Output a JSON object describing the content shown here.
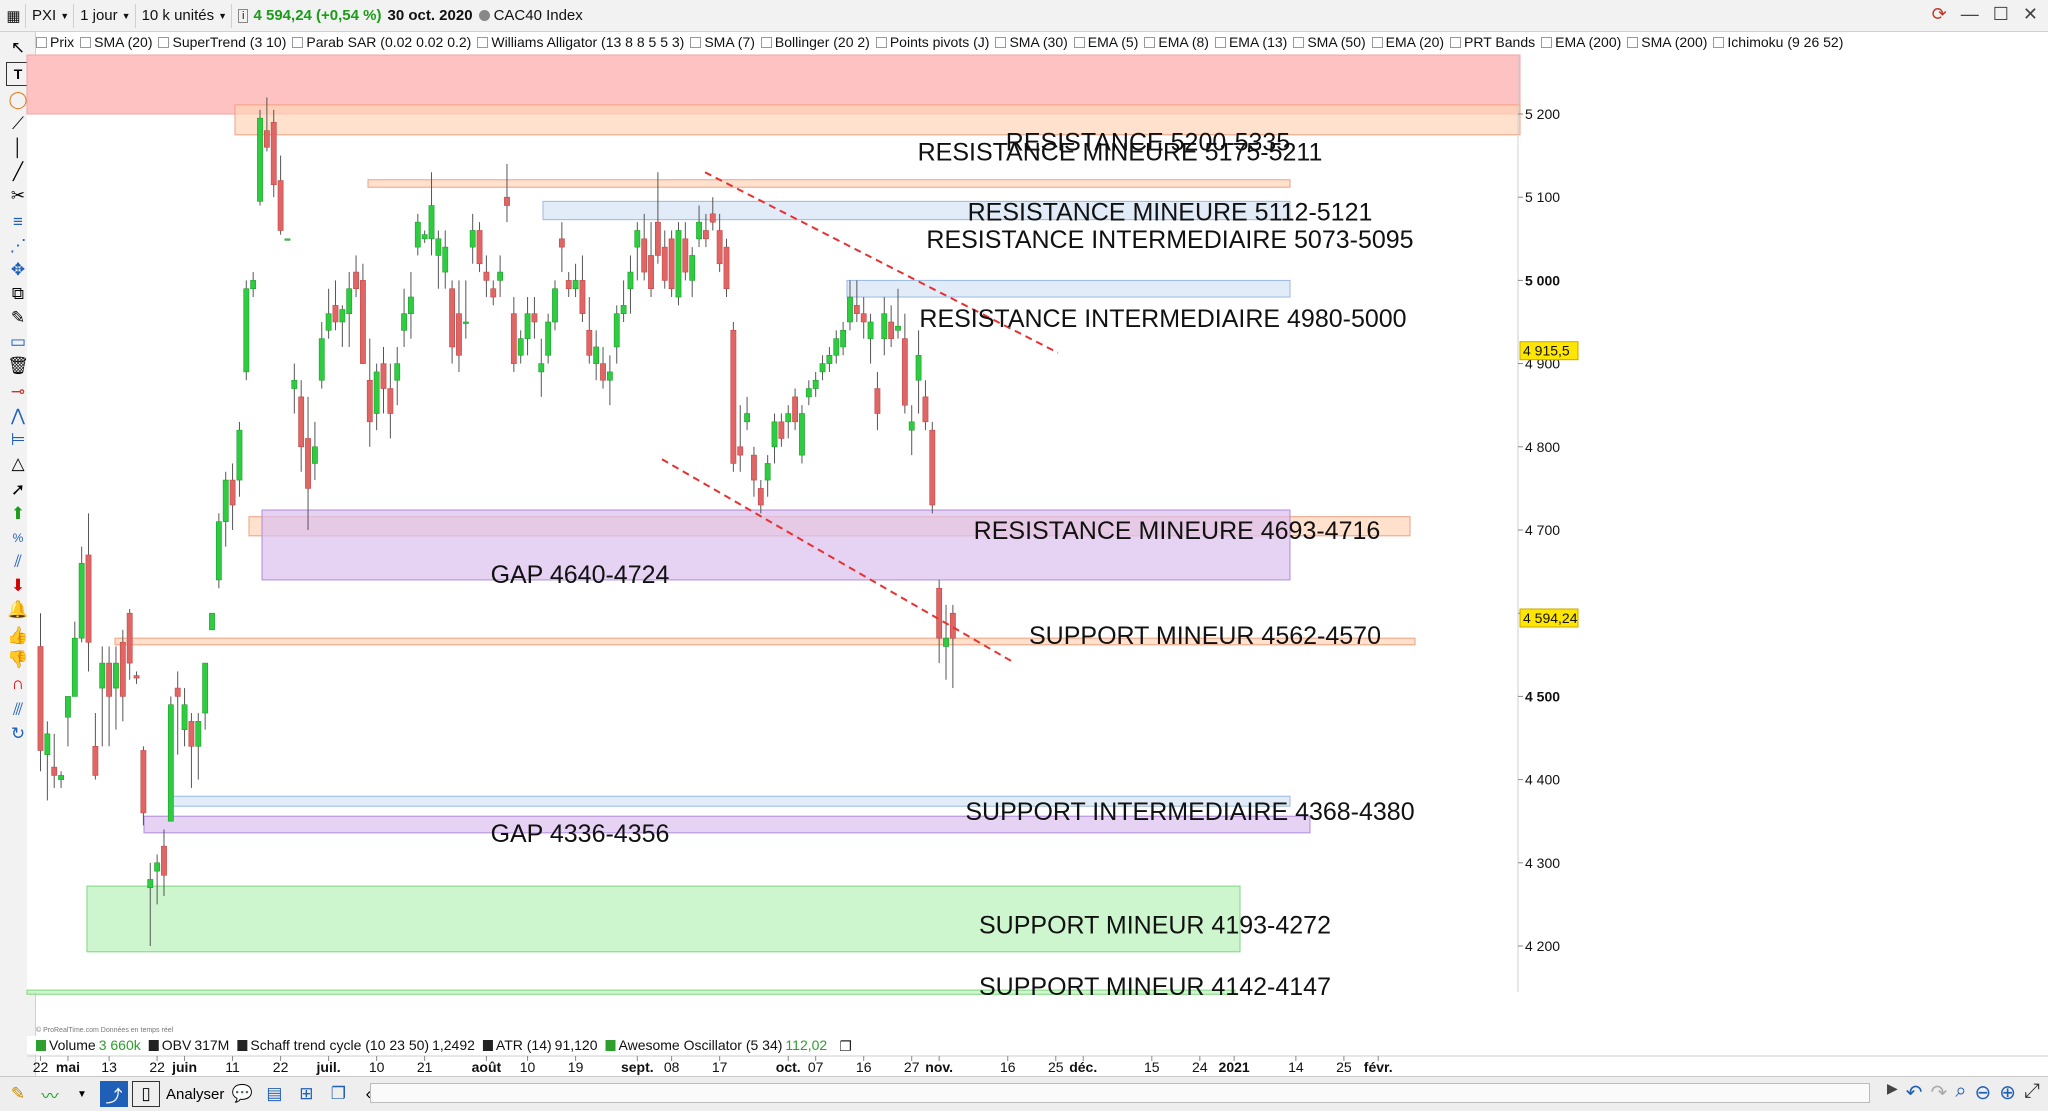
{
  "header": {
    "symbol": "PXI",
    "period": "1 jour",
    "units": "10 k unités",
    "price": "4 594,24 (+0,54 %)",
    "date": "30 oct. 2020",
    "index_name": "CAC40 Index"
  },
  "indicators": [
    "Prix",
    "SMA (20)",
    "SuperTrend (3 10)",
    "Parab SAR (0.02 0.02 0.2)",
    "Williams Alligator (13 8 8 5 5 3)",
    "SMA (7)",
    "Bollinger (20 2)",
    "Points pivots (J)",
    "SMA (30)",
    "EMA (5)",
    "EMA (8)",
    "EMA (13)",
    "SMA (50)",
    "EMA (20)",
    "PRT Bands",
    "EMA (200)",
    "SMA (200)",
    "Ichimoku (9 26 52)"
  ],
  "lower_indicators": [
    {
      "name": "Volume",
      "value": "3 660k",
      "color": "#2e9e2e"
    },
    {
      "name": "OBV",
      "value": "317M",
      "color": "#111111"
    },
    {
      "name": "Schaff trend cycle (10 23 50)",
      "value": "1,2492",
      "color": "#111111"
    },
    {
      "name": "ATR (14)",
      "value": "91,120",
      "color": "#111111"
    },
    {
      "name": "Awesome Oscillator (5 34)",
      "value": "112,02",
      "color": "#2e9e2e"
    }
  ],
  "copyright": "© ProRealTime.com  Données en temps réel",
  "bottombar": {
    "analyser": "Analyser"
  },
  "colors": {
    "up": "#2ecc40",
    "down": "#e06666",
    "resistance": "#ff9999",
    "minor": "#ffd4b8",
    "intermediate": "#d6e4f7",
    "gap": "#dcc1f0",
    "support": "#b9f2b9",
    "trendline": "#e83030"
  },
  "chart_data": {
    "type": "candlestick",
    "y_range": [
      4140,
      5240
    ],
    "y_ticks": [
      {
        "v": 5200,
        "label": "5 200"
      },
      {
        "v": 5100,
        "label": "5 100"
      },
      {
        "v": 5000,
        "label": "5 000",
        "bold": true
      },
      {
        "v": 4900,
        "label": "4 900"
      },
      {
        "v": 4800,
        "label": "4 800"
      },
      {
        "v": 4700,
        "label": "4 700"
      },
      {
        "v": 4600,
        "label": "4 600"
      },
      {
        "v": 4500,
        "label": "4 500",
        "bold": true
      },
      {
        "v": 4400,
        "label": "4 400"
      },
      {
        "v": 4300,
        "label": "4 300"
      },
      {
        "v": 4200,
        "label": "4 200"
      }
    ],
    "price_tags": [
      {
        "v": 4915.5,
        "label": "4 915,5"
      },
      {
        "v": 4594.24,
        "label": "4 594,24"
      }
    ],
    "x_labels": [
      {
        "i": 0,
        "label": "22"
      },
      {
        "i": 4,
        "label": "mai",
        "bold": true
      },
      {
        "i": 10,
        "label": "13"
      },
      {
        "i": 17,
        "label": "22"
      },
      {
        "i": 21,
        "label": "juin",
        "bold": true
      },
      {
        "i": 28,
        "label": "11"
      },
      {
        "i": 35,
        "label": "22"
      },
      {
        "i": 42,
        "label": "juil.",
        "bold": true
      },
      {
        "i": 49,
        "label": "10"
      },
      {
        "i": 56,
        "label": "21"
      },
      {
        "i": 65,
        "label": "août",
        "bold": true
      },
      {
        "i": 71,
        "label": "10"
      },
      {
        "i": 78,
        "label": "19"
      },
      {
        "i": 87,
        "label": "sept.",
        "bold": true
      },
      {
        "i": 92,
        "label": "08"
      },
      {
        "i": 99,
        "label": "17"
      },
      {
        "i": 109,
        "label": "oct.",
        "bold": true
      },
      {
        "i": 113,
        "label": "07"
      },
      {
        "i": 120,
        "label": "16"
      },
      {
        "i": 127,
        "label": "27"
      },
      {
        "i": 131,
        "label": "nov.",
        "bold": true
      },
      {
        "i": 141,
        "label": "16"
      },
      {
        "i": 148,
        "label": "25"
      },
      {
        "i": 152,
        "label": "déc.",
        "bold": true
      },
      {
        "i": 162,
        "label": "15"
      },
      {
        "i": 169,
        "label": "24"
      },
      {
        "i": 174,
        "label": "2021",
        "bold": true
      },
      {
        "i": 183,
        "label": "14"
      },
      {
        "i": 190,
        "label": "25"
      },
      {
        "i": 195,
        "label": "févr.",
        "bold": true
      }
    ],
    "candles": [
      {
        "o": 4560,
        "h": 4600,
        "l": 4410,
        "c": 4435
      },
      {
        "o": 4430,
        "h": 4470,
        "l": 4375,
        "c": 4455
      },
      {
        "o": 4415,
        "h": 4455,
        "l": 4390,
        "c": 4405
      },
      {
        "o": 4400,
        "h": 4410,
        "l": 4390,
        "c": 4405
      },
      {
        "o": 4475,
        "h": 4500,
        "l": 4440,
        "c": 4500
      },
      {
        "o": 4500,
        "h": 4590,
        "l": 4500,
        "c": 4570
      },
      {
        "o": 4570,
        "h": 4680,
        "l": 4565,
        "c": 4660
      },
      {
        "o": 4670,
        "h": 4720,
        "l": 4530,
        "c": 4565
      },
      {
        "o": 4440,
        "h": 4480,
        "l": 4400,
        "c": 4405
      },
      {
        "o": 4510,
        "h": 4560,
        "l": 4440,
        "c": 4540
      },
      {
        "o": 4540,
        "h": 4560,
        "l": 4440,
        "c": 4500
      },
      {
        "o": 4510,
        "h": 4560,
        "l": 4460,
        "c": 4540
      },
      {
        "o": 4565,
        "h": 4580,
        "l": 4470,
        "c": 4500
      },
      {
        "o": 4600,
        "h": 4605,
        "l": 4520,
        "c": 4540
      },
      {
        "o": 4525,
        "h": 4530,
        "l": 4515,
        "c": 4522
      },
      {
        "o": 4435,
        "h": 4440,
        "l": 4345,
        "c": 4360
      },
      {
        "o": 4270,
        "h": 4300,
        "l": 4200,
        "c": 4280
      },
      {
        "o": 4290,
        "h": 4310,
        "l": 4250,
        "c": 4300
      },
      {
        "o": 4320,
        "h": 4340,
        "l": 4260,
        "c": 4285
      },
      {
        "o": 4350,
        "h": 4500,
        "l": 4350,
        "c": 4490
      },
      {
        "o": 4510,
        "h": 4530,
        "l": 4430,
        "c": 4500
      },
      {
        "o": 4460,
        "h": 4510,
        "l": 4440,
        "c": 4490
      },
      {
        "o": 4470,
        "h": 4480,
        "l": 4390,
        "c": 4440
      },
      {
        "o": 4440,
        "h": 4480,
        "l": 4400,
        "c": 4470
      },
      {
        "o": 4480,
        "h": 4540,
        "l": 4460,
        "c": 4540
      },
      {
        "o": 4580,
        "h": 4600,
        "l": 4580,
        "c": 4600
      },
      {
        "o": 4640,
        "h": 4720,
        "l": 4630,
        "c": 4710
      },
      {
        "o": 4710,
        "h": 4770,
        "l": 4680,
        "c": 4760
      },
      {
        "o": 4760,
        "h": 4780,
        "l": 4700,
        "c": 4730
      },
      {
        "o": 4760,
        "h": 4830,
        "l": 4740,
        "c": 4820
      },
      {
        "o": 4890,
        "h": 5000,
        "l": 4880,
        "c": 4990
      },
      {
        "o": 4990,
        "h": 5010,
        "l": 4980,
        "c": 5000
      },
      {
        "o": 5095,
        "h": 5205,
        "l": 5090,
        "c": 5195
      },
      {
        "o": 5180,
        "h": 5220,
        "l": 5155,
        "c": 5160
      },
      {
        "o": 5190,
        "h": 5205,
        "l": 5100,
        "c": 5115
      },
      {
        "o": 5120,
        "h": 5150,
        "l": 5055,
        "c": 5060
      },
      {
        "o": 5050,
        "h": 5050,
        "l": 5050,
        "c": 5050
      },
      {
        "o": 4870,
        "h": 4900,
        "l": 4840,
        "c": 4880
      },
      {
        "o": 4860,
        "h": 4880,
        "l": 4770,
        "c": 4800
      },
      {
        "o": 4810,
        "h": 4860,
        "l": 4700,
        "c": 4750
      },
      {
        "o": 4780,
        "h": 4830,
        "l": 4760,
        "c": 4800
      },
      {
        "o": 4880,
        "h": 4950,
        "l": 4870,
        "c": 4930
      },
      {
        "o": 4940,
        "h": 4990,
        "l": 4930,
        "c": 4960
      },
      {
        "o": 4970,
        "h": 5000,
        "l": 4940,
        "c": 4950
      },
      {
        "o": 4950,
        "h": 4970,
        "l": 4920,
        "c": 4965
      },
      {
        "o": 4960,
        "h": 5010,
        "l": 4920,
        "c": 4990
      },
      {
        "o": 5010,
        "h": 5030,
        "l": 4980,
        "c": 4990
      },
      {
        "o": 5000,
        "h": 5020,
        "l": 4900,
        "c": 4900
      },
      {
        "o": 4880,
        "h": 4930,
        "l": 4800,
        "c": 4830
      },
      {
        "o": 4840,
        "h": 4900,
        "l": 4820,
        "c": 4890
      },
      {
        "o": 4900,
        "h": 4920,
        "l": 4840,
        "c": 4870
      },
      {
        "o": 4870,
        "h": 4900,
        "l": 4810,
        "c": 4840
      },
      {
        "o": 4880,
        "h": 4920,
        "l": 4850,
        "c": 4900
      },
      {
        "o": 4940,
        "h": 4990,
        "l": 4920,
        "c": 4960
      },
      {
        "o": 4960,
        "h": 5010,
        "l": 4930,
        "c": 4980
      },
      {
        "o": 5040,
        "h": 5080,
        "l": 5030,
        "c": 5070
      },
      {
        "o": 5050,
        "h": 5060,
        "l": 5045,
        "c": 5055
      },
      {
        "o": 5050,
        "h": 5130,
        "l": 5030,
        "c": 5090
      },
      {
        "o": 5030,
        "h": 5060,
        "l": 4990,
        "c": 5050
      },
      {
        "o": 5010,
        "h": 5060,
        "l": 4990,
        "c": 5040
      },
      {
        "o": 4990,
        "h": 5000,
        "l": 4900,
        "c": 4920
      },
      {
        "o": 4960,
        "h": 5000,
        "l": 4890,
        "c": 4910
      },
      {
        "o": 4950,
        "h": 5000,
        "l": 4930,
        "c": 4950
      },
      {
        "o": 5040,
        "h": 5080,
        "l": 5020,
        "c": 5060
      },
      {
        "o": 5060,
        "h": 5070,
        "l": 5010,
        "c": 5020
      },
      {
        "o": 5010,
        "h": 5030,
        "l": 4980,
        "c": 5000
      },
      {
        "o": 4990,
        "h": 5000,
        "l": 4970,
        "c": 4980
      },
      {
        "o": 5000,
        "h": 5030,
        "l": 4980,
        "c": 5010
      },
      {
        "o": 5100,
        "h": 5140,
        "l": 5070,
        "c": 5090
      },
      {
        "o": 4960,
        "h": 4980,
        "l": 4890,
        "c": 4900
      },
      {
        "o": 4910,
        "h": 4940,
        "l": 4900,
        "c": 4930
      },
      {
        "o": 4930,
        "h": 4980,
        "l": 4910,
        "c": 4960
      },
      {
        "o": 4960,
        "h": 4980,
        "l": 4930,
        "c": 4950
      },
      {
        "o": 4890,
        "h": 4930,
        "l": 4860,
        "c": 4900
      },
      {
        "o": 4910,
        "h": 4960,
        "l": 4900,
        "c": 4950
      },
      {
        "o": 4950,
        "h": 5000,
        "l": 4940,
        "c": 4990
      },
      {
        "o": 5050,
        "h": 5070,
        "l": 5010,
        "c": 5040
      },
      {
        "o": 5000,
        "h": 5010,
        "l": 4980,
        "c": 4990
      },
      {
        "o": 4990,
        "h": 5020,
        "l": 4980,
        "c": 5000
      },
      {
        "o": 5000,
        "h": 5030,
        "l": 4950,
        "c": 4960
      },
      {
        "o": 4940,
        "h": 4980,
        "l": 4900,
        "c": 4910
      },
      {
        "o": 4900,
        "h": 4940,
        "l": 4880,
        "c": 4920
      },
      {
        "o": 4900,
        "h": 4920,
        "l": 4870,
        "c": 4880
      },
      {
        "o": 4880,
        "h": 4910,
        "l": 4850,
        "c": 4890
      },
      {
        "o": 4920,
        "h": 4970,
        "l": 4900,
        "c": 4960
      },
      {
        "o": 4960,
        "h": 5000,
        "l": 4950,
        "c": 4970
      },
      {
        "o": 4990,
        "h": 5030,
        "l": 4960,
        "c": 5010
      },
      {
        "o": 5040,
        "h": 5070,
        "l": 5000,
        "c": 5060
      },
      {
        "o": 5050,
        "h": 5080,
        "l": 5000,
        "c": 5010
      },
      {
        "o": 5030,
        "h": 5070,
        "l": 4980,
        "c": 4990
      },
      {
        "o": 5070,
        "h": 5130,
        "l": 5020,
        "c": 5030
      },
      {
        "o": 5040,
        "h": 5060,
        "l": 4990,
        "c": 5000
      },
      {
        "o": 5050,
        "h": 5060,
        "l": 4980,
        "c": 4990
      },
      {
        "o": 4980,
        "h": 5070,
        "l": 4970,
        "c": 5060
      },
      {
        "o": 5050,
        "h": 5070,
        "l": 5000,
        "c": 5010
      },
      {
        "o": 5000,
        "h": 5040,
        "l": 4980,
        "c": 5030
      },
      {
        "o": 5050,
        "h": 5090,
        "l": 5040,
        "c": 5070
      },
      {
        "o": 5060,
        "h": 5080,
        "l": 5040,
        "c": 5050
      },
      {
        "o": 5080,
        "h": 5100,
        "l": 5060,
        "c": 5070
      },
      {
        "o": 5060,
        "h": 5080,
        "l": 5010,
        "c": 5020
      },
      {
        "o": 5040,
        "h": 5050,
        "l": 4980,
        "c": 4990
      },
      {
        "o": 4940,
        "h": 4950,
        "l": 4770,
        "c": 4780
      },
      {
        "o": 4800,
        "h": 4850,
        "l": 4770,
        "c": 4790
      },
      {
        "o": 4830,
        "h": 4860,
        "l": 4820,
        "c": 4840
      },
      {
        "o": 4790,
        "h": 4800,
        "l": 4740,
        "c": 4760
      },
      {
        "o": 4750,
        "h": 4760,
        "l": 4720,
        "c": 4730
      },
      {
        "o": 4760,
        "h": 4790,
        "l": 4740,
        "c": 4780
      },
      {
        "o": 4800,
        "h": 4840,
        "l": 4780,
        "c": 4830
      },
      {
        "o": 4830,
        "h": 4840,
        "l": 4800,
        "c": 4810
      },
      {
        "o": 4830,
        "h": 4850,
        "l": 4810,
        "c": 4840
      },
      {
        "o": 4860,
        "h": 4870,
        "l": 4820,
        "c": 4830
      },
      {
        "o": 4790,
        "h": 4850,
        "l": 4780,
        "c": 4840
      },
      {
        "o": 4860,
        "h": 4880,
        "l": 4850,
        "c": 4870
      },
      {
        "o": 4870,
        "h": 4890,
        "l": 4860,
        "c": 4880
      },
      {
        "o": 4890,
        "h": 4910,
        "l": 4880,
        "c": 4900
      },
      {
        "o": 4900,
        "h": 4920,
        "l": 4890,
        "c": 4910
      },
      {
        "o": 4910,
        "h": 4940,
        "l": 4900,
        "c": 4930
      },
      {
        "o": 4920,
        "h": 4950,
        "l": 4910,
        "c": 4940
      },
      {
        "o": 4950,
        "h": 5000,
        "l": 4940,
        "c": 4980
      },
      {
        "o": 4970,
        "h": 5000,
        "l": 4950,
        "c": 4960
      },
      {
        "o": 4960,
        "h": 4980,
        "l": 4930,
        "c": 4950
      },
      {
        "o": 4930,
        "h": 4960,
        "l": 4900,
        "c": 4950
      },
      {
        "o": 4870,
        "h": 4890,
        "l": 4820,
        "c": 4840
      },
      {
        "o": 4930,
        "h": 4980,
        "l": 4910,
        "c": 4960
      },
      {
        "o": 4950,
        "h": 4970,
        "l": 4920,
        "c": 4930
      },
      {
        "o": 4940,
        "h": 4990,
        "l": 4930,
        "c": 4945
      },
      {
        "o": 4930,
        "h": 4960,
        "l": 4840,
        "c": 4850
      },
      {
        "o": 4820,
        "h": 4850,
        "l": 4790,
        "c": 4830
      },
      {
        "o": 4880,
        "h": 4940,
        "l": 4840,
        "c": 4910
      },
      {
        "o": 4860,
        "h": 4880,
        "l": 4820,
        "c": 4830
      },
      {
        "o": 4820,
        "h": 4830,
        "l": 4720,
        "c": 4730
      },
      {
        "o": 4630,
        "h": 4640,
        "l": 4540,
        "c": 4570
      },
      {
        "o": 4560,
        "h": 4610,
        "l": 4520,
        "c": 4570
      },
      {
        "o": 4600,
        "h": 4610,
        "l": 4510,
        "c": 4570
      }
    ],
    "zones": [
      {
        "kind": "resistance",
        "lo": 5200,
        "hi": 5335,
        "x0": 0,
        "x1": 1520,
        "label": "RESISTANCE 5200-5335",
        "lx": 1148,
        "ly": 5167
      },
      {
        "kind": "minor",
        "lo": 5175,
        "hi": 5211,
        "x0": 235,
        "x1": 1520,
        "label": "RESISTANCE MINEURE 5175-5211",
        "lx": 1120,
        "ly": 5155
      },
      {
        "kind": "minor",
        "lo": 5112,
        "hi": 5121,
        "x0": 368,
        "x1": 1290,
        "label": "RESISTANCE MINEURE 5112-5121",
        "lx": 1170,
        "ly": 5083
      },
      {
        "kind": "intermediate",
        "lo": 5073,
        "hi": 5095,
        "x0": 543,
        "x1": 1290,
        "label": "RESISTANCE INTERMEDIAIRE 5073-5095",
        "lx": 1170,
        "ly": 5050
      },
      {
        "kind": "intermediate",
        "lo": 4980,
        "hi": 5000,
        "x0": 847,
        "x1": 1290,
        "label": "RESISTANCE INTERMEDIAIRE 4980-5000",
        "lx": 1163,
        "ly": 4955
      },
      {
        "kind": "minor",
        "lo": 4693,
        "hi": 4716,
        "x0": 249,
        "x1": 1410,
        "label": "RESISTANCE MINEURE 4693-4716",
        "lx": 1177,
        "ly": 4700
      },
      {
        "kind": "gap",
        "lo": 4640,
        "hi": 4724,
        "x0": 262,
        "x1": 1290,
        "label": "GAP 4640-4724",
        "lx": 580,
        "ly": 4647
      },
      {
        "kind": "minor",
        "lo": 4562,
        "hi": 4570,
        "x0": 115,
        "x1": 1415,
        "label": "SUPPORT MINEUR 4562-4570",
        "lx": 1205,
        "ly": 4574
      },
      {
        "kind": "intermediate",
        "lo": 4368,
        "hi": 4380,
        "x0": 172,
        "x1": 1290,
        "label": "SUPPORT INTERMEDIAIRE 4368-4380",
        "lx": 1190,
        "ly": 4362
      },
      {
        "kind": "gap",
        "lo": 4336,
        "hi": 4356,
        "x0": 144,
        "x1": 1310,
        "label": "GAP 4336-4356",
        "lx": 580,
        "ly": 4336
      },
      {
        "kind": "support",
        "lo": 4193,
        "hi": 4272,
        "x0": 87,
        "x1": 1240,
        "label": "SUPPORT MINEUR 4193-4272",
        "lx": 1155,
        "ly": 4226
      },
      {
        "kind": "support",
        "lo": 4142,
        "hi": 4147,
        "x0": 27,
        "x1": 1235,
        "label": "SUPPORT MINEUR 4142-4147",
        "lx": 1155,
        "ly": 4152
      }
    ],
    "trendlines": [
      {
        "x0": 705,
        "y0": 5130,
        "x1": 1058,
        "y1": 4913
      },
      {
        "x0": 662,
        "y0": 4785,
        "x1": 1015,
        "y1": 4540
      }
    ]
  }
}
